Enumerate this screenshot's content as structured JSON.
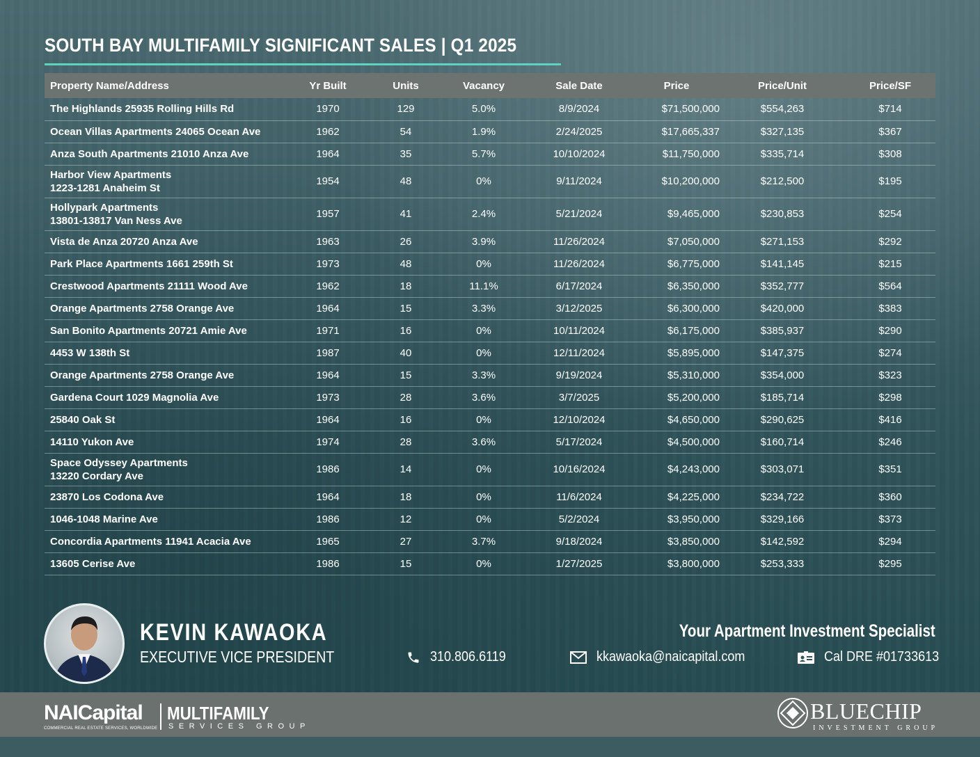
{
  "title": "SOUTH BAY MULTIFAMILY SIGNIFICANT SALES | Q1 2025",
  "table": {
    "headers": [
      "Property Name/Address",
      "Yr Built",
      "Units",
      "Vacancy",
      "Sale Date",
      "Price",
      "Price/Unit",
      "Price/SF"
    ],
    "rows": [
      {
        "name": "The Highlands 25935 Rolling Hills Rd",
        "name2": "",
        "yr": "1970",
        "units": "129",
        "vac": "5.0%",
        "date": "8/9/2024",
        "price": "$71,500,000",
        "ppu": "$554,263",
        "psf": "$714"
      },
      {
        "name": "Ocean Villas Apartments 24065 Ocean Ave",
        "name2": "",
        "yr": "1962",
        "units": "54",
        "vac": "1.9%",
        "date": "2/24/2025",
        "price": "$17,665,337",
        "ppu": "$327,135",
        "psf": "$367"
      },
      {
        "name": "Anza South Apartments 21010 Anza Ave",
        "name2": "",
        "yr": "1964",
        "units": "35",
        "vac": "5.7%",
        "date": "10/10/2024",
        "price": "$11,750,000",
        "ppu": "$335,714",
        "psf": "$308"
      },
      {
        "name": "Harbor View Apartments",
        "name2": "1223-1281 Anaheim St",
        "yr": "1954",
        "units": "48",
        "vac": "0%",
        "date": "9/11/2024",
        "price": "$10,200,000",
        "ppu": "$212,500",
        "psf": "$195"
      },
      {
        "name": "Hollypark Apartments",
        "name2": "13801-13817 Van Ness Ave",
        "yr": "1957",
        "units": "41",
        "vac": "2.4%",
        "date": "5/21/2024",
        "price": "$9,465,000",
        "ppu": "$230,853",
        "psf": "$254"
      },
      {
        "name": "Vista de Anza 20720 Anza Ave",
        "name2": "",
        "yr": "1963",
        "units": "26",
        "vac": "3.9%",
        "date": "11/26/2024",
        "price": "$7,050,000",
        "ppu": "$271,153",
        "psf": "$292"
      },
      {
        "name": "Park Place Apartments 1661 259th St",
        "name2": "",
        "yr": "1973",
        "units": "48",
        "vac": "0%",
        "date": "11/26/2024",
        "price": "$6,775,000",
        "ppu": "$141,145",
        "psf": "$215"
      },
      {
        "name": "Crestwood Apartments 21111 Wood Ave",
        "name2": "",
        "yr": "1962",
        "units": "18",
        "vac": "11.1%",
        "date": "6/17/2024",
        "price": "$6,350,000",
        "ppu": "$352,777",
        "psf": "$564"
      },
      {
        "name": "Orange Apartments 2758 Orange Ave",
        "name2": "",
        "yr": "1964",
        "units": "15",
        "vac": "3.3%",
        "date": "3/12/2025",
        "price": "$6,300,000",
        "ppu": "$420,000",
        "psf": "$383"
      },
      {
        "name": "San Bonito Apartments 20721 Amie Ave",
        "name2": "",
        "yr": "1971",
        "units": "16",
        "vac": "0%",
        "date": "10/11/2024",
        "price": "$6,175,000",
        "ppu": "$385,937",
        "psf": "$290"
      },
      {
        "name": "4453 W 138th St",
        "name2": "",
        "yr": "1987",
        "units": "40",
        "vac": "0%",
        "date": "12/11/2024",
        "price": "$5,895,000",
        "ppu": "$147,375",
        "psf": "$274"
      },
      {
        "name": "Orange Apartments 2758 Orange Ave",
        "name2": "",
        "yr": "1964",
        "units": "15",
        "vac": "3.3%",
        "date": "9/19/2024",
        "price": "$5,310,000",
        "ppu": "$354,000",
        "psf": "$323"
      },
      {
        "name": "Gardena Court 1029 Magnolia Ave",
        "name2": "",
        "yr": "1973",
        "units": "28",
        "vac": "3.6%",
        "date": "3/7/2025",
        "price": "$5,200,000",
        "ppu": "$185,714",
        "psf": "$298"
      },
      {
        "name": "25840 Oak St",
        "name2": "",
        "yr": "1964",
        "units": "16",
        "vac": "0%",
        "date": "12/10/2024",
        "price": "$4,650,000",
        "ppu": "$290,625",
        "psf": "$416"
      },
      {
        "name": "14110 Yukon Ave",
        "name2": "",
        "yr": "1974",
        "units": "28",
        "vac": "3.6%",
        "date": "5/17/2024",
        "price": "$4,500,000",
        "ppu": "$160,714",
        "psf": "$246"
      },
      {
        "name": "Space Odyssey Apartments",
        "name2": "13220 Cordary Ave",
        "yr": "1986",
        "units": "14",
        "vac": "0%",
        "date": "10/16/2024",
        "price": "$4,243,000",
        "ppu": "$303,071",
        "psf": "$351"
      },
      {
        "name": "23870 Los Codona Ave",
        "name2": "",
        "yr": "1964",
        "units": "18",
        "vac": "0%",
        "date": "11/6/2024",
        "price": "$4,225,000",
        "ppu": "$234,722",
        "psf": "$360"
      },
      {
        "name": "1046-1048 Marine Ave",
        "name2": "",
        "yr": "1986",
        "units": "12",
        "vac": "0%",
        "date": "5/2/2024",
        "price": "$3,950,000",
        "ppu": "$329,166",
        "psf": "$373"
      },
      {
        "name": "Concordia Apartments 11941 Acacia Ave",
        "name2": "",
        "yr": "1965",
        "units": "27",
        "vac": "3.7%",
        "date": "9/18/2024",
        "price": "$3,850,000",
        "ppu": "$142,592",
        "psf": "$294"
      },
      {
        "name": "13605 Cerise Ave",
        "name2": "",
        "yr": "1986",
        "units": "15",
        "vac": "0%",
        "date": "1/27/2025",
        "price": "$3,800,000",
        "ppu": "$253,333",
        "psf": "$295"
      }
    ]
  },
  "agent": {
    "name": "KEVIN KAWAOKA",
    "role": "EXECUTIVE VICE PRESIDENT",
    "tagline": "Your Apartment Investment Specialist",
    "phone": "310.806.6119",
    "email": "kkawaoka@naicapital.com",
    "license": "Cal DRE #01733613"
  },
  "footer": {
    "nai_logo": "NAICapital",
    "nai_tagline": "COMMERCIAL REAL ESTATE SERVICES, WORLDWIDE",
    "mf_logo": "MULTIFAMILY",
    "mf_sub": "SERVICES GROUP",
    "bc_logo": "BLUECHIP",
    "bc_sub": "INVESTMENT GROUP"
  },
  "colors": {
    "accent": "#5ed3c2",
    "header_bg": "#6d7371",
    "footer_bg": "#6a716f"
  },
  "icons": {
    "phone": "phone-icon",
    "email": "envelope-icon",
    "license": "id-card-icon"
  }
}
